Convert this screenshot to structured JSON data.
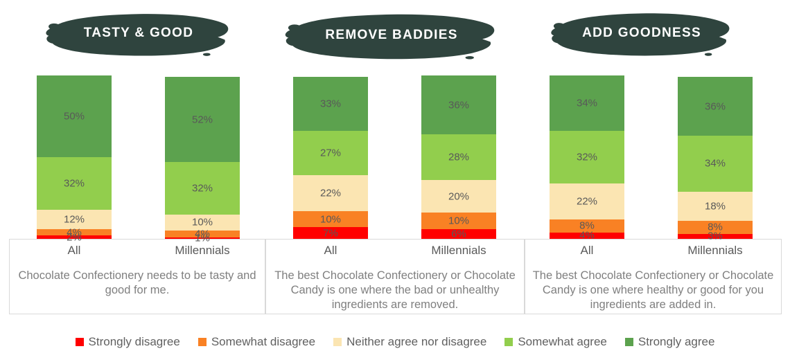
{
  "colors": {
    "header_bg": "#2f443e",
    "header_text": "#ffffff",
    "strongly_disagree": "#ff0000",
    "somewhat_disagree": "#f98124",
    "neither": "#fbe5b2",
    "somewhat_agree": "#92ce4d",
    "strongly_agree": "#5ca24e",
    "box_border": "#d9d9d9",
    "value_label_text": "#595959",
    "caption_text": "#7f7f7f"
  },
  "legend": [
    {
      "label": "Strongly disagree",
      "color": "#ff0000"
    },
    {
      "label": "Somewhat disagree",
      "color": "#f98124"
    },
    {
      "label": "Neither agree nor disagree",
      "color": "#fbe5b2"
    },
    {
      "label": "Somewhat agree",
      "color": "#92ce4d"
    },
    {
      "label": "Strongly agree",
      "color": "#5ca24e"
    }
  ],
  "chart_data": {
    "type": "bar",
    "stacked": true,
    "unit": "%",
    "value_axis_range": [
      0,
      100
    ],
    "grid": false,
    "legend_position": "bottom",
    "series_order_bottom_to_top": [
      "Strongly disagree",
      "Somewhat disagree",
      "Neither agree nor disagree",
      "Somewhat agree",
      "Strongly agree"
    ],
    "panels": [
      {
        "title": "TASTY & GOOD",
        "caption": "Chocolate Confectionery needs to be tasty and good for me.",
        "groups": [
          {
            "label": "All",
            "values": [
              2,
              4,
              12,
              32,
              50
            ],
            "value_labels": [
              "2%",
              "4%",
              "12%",
              "32%",
              "50%"
            ]
          },
          {
            "label": "Millennials",
            "values": [
              1,
              4,
              10,
              32,
              52
            ],
            "value_labels": [
              "1%",
              "4%",
              "10%",
              "32%",
              "52%"
            ]
          }
        ]
      },
      {
        "title": "REMOVE BADDIES",
        "caption": "The best Chocolate Confectionery or Chocolate Candy is one where the bad or unhealthy ingredients are removed.",
        "groups": [
          {
            "label": "All",
            "values": [
              7,
              10,
              22,
              27,
              33
            ],
            "value_labels": [
              "7%",
              "10%",
              "22%",
              "27%",
              "33%"
            ]
          },
          {
            "label": "Millennials",
            "values": [
              6,
              10,
              20,
              28,
              36
            ],
            "value_labels": [
              "6%",
              "10%",
              "20%",
              "28%",
              "36%"
            ]
          }
        ]
      },
      {
        "title": "ADD GOODNESS",
        "caption": "The best Chocolate Confectionery or Chocolate Candy is one where healthy or good for you ingredients are added in.",
        "groups": [
          {
            "label": "All",
            "values": [
              4,
              8,
              22,
              32,
              34
            ],
            "value_labels": [
              "4%",
              "8%",
              "22%",
              "32%",
              "34%"
            ]
          },
          {
            "label": "Millennials",
            "values": [
              3,
              8,
              18,
              34,
              36
            ],
            "value_labels": [
              "3%",
              "8%",
              "18%",
              "34%",
              "36%"
            ]
          }
        ]
      }
    ]
  }
}
